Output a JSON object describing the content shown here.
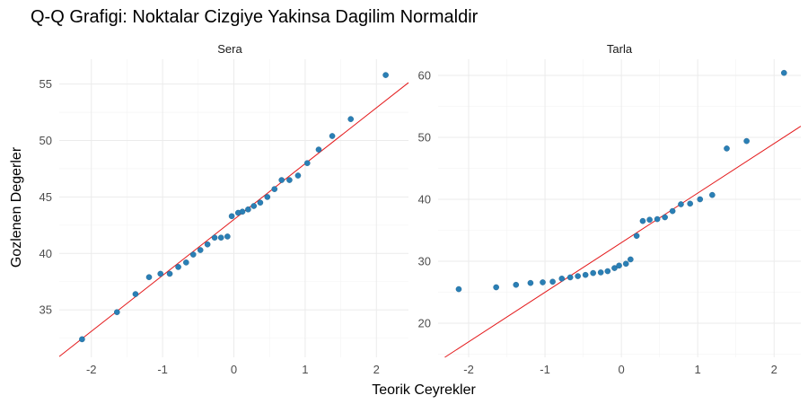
{
  "chart_data": {
    "type": "scatter",
    "title": "Q-Q Grafigi: Noktalar Cizgiye Yakinsa Dagilim Normaldir",
    "xlabel": "Teorik Ceyrekler",
    "ylabel": "Gozlenen Degerler",
    "grid": true,
    "colors": {
      "points": "#2a7fb5",
      "reference_line": "#e41a1c"
    },
    "panels": [
      {
        "name": "Sera",
        "xlim": [
          -2.45,
          2.45
        ],
        "ylim": [
          30.8,
          57.2
        ],
        "x_ticks": [
          -2,
          -1,
          0,
          1,
          2
        ],
        "y_ticks": [
          35,
          40,
          45,
          50,
          55
        ],
        "reference_line": {
          "intercept": 43.0,
          "slope": 4.95
        },
        "points": {
          "x": [
            -2.13,
            -1.64,
            -1.38,
            -1.19,
            -1.03,
            -0.9,
            -0.78,
            -0.67,
            -0.57,
            -0.47,
            -0.37,
            -0.27,
            -0.18,
            -0.09,
            -0.03,
            0.06,
            0.12,
            0.2,
            0.28,
            0.37,
            0.47,
            0.57,
            0.67,
            0.78,
            0.9,
            1.03,
            1.19,
            1.38,
            1.64,
            2.13
          ],
          "y": [
            32.4,
            34.8,
            36.4,
            37.9,
            38.2,
            38.2,
            38.8,
            39.2,
            39.9,
            40.3,
            40.8,
            41.4,
            41.4,
            41.5,
            43.3,
            43.6,
            43.7,
            43.9,
            44.2,
            44.5,
            45.0,
            45.7,
            46.5,
            46.5,
            46.9,
            48.0,
            49.2,
            50.4,
            51.9,
            55.8
          ]
        }
      },
      {
        "name": "Tarla",
        "xlim": [
          -2.4,
          2.35
        ],
        "ylim": [
          14.5,
          62.6
        ],
        "x_ticks": [
          -2,
          -1,
          0,
          1,
          2
        ],
        "y_ticks": [
          20,
          30,
          40,
          50,
          60
        ],
        "reference_line": {
          "intercept": 33.0,
          "slope": 8.0
        },
        "points": {
          "x": [
            -2.13,
            -1.64,
            -1.38,
            -1.19,
            -1.03,
            -0.9,
            -0.78,
            -0.67,
            -0.57,
            -0.47,
            -0.37,
            -0.27,
            -0.18,
            -0.09,
            -0.03,
            0.06,
            0.12,
            0.2,
            0.28,
            0.37,
            0.47,
            0.57,
            0.67,
            0.78,
            0.9,
            1.03,
            1.19,
            1.38,
            1.64,
            2.13
          ],
          "y": [
            25.5,
            25.8,
            26.2,
            26.5,
            26.6,
            26.7,
            27.2,
            27.4,
            27.6,
            27.8,
            28.1,
            28.2,
            28.4,
            28.9,
            29.3,
            29.6,
            30.3,
            34.1,
            36.5,
            36.7,
            36.8,
            37.1,
            38.1,
            39.2,
            39.3,
            40.0,
            40.7,
            48.2,
            49.4,
            60.4
          ]
        }
      }
    ]
  }
}
